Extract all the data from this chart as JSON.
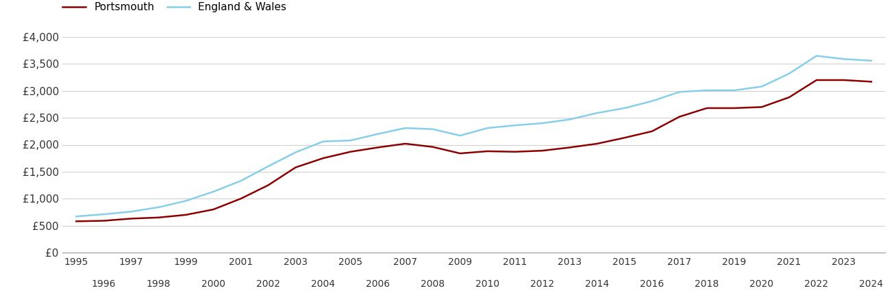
{
  "portsmouth": {
    "years": [
      1995,
      1996,
      1997,
      1998,
      1999,
      2000,
      2001,
      2002,
      2003,
      2004,
      2005,
      2006,
      2007,
      2008,
      2009,
      2010,
      2011,
      2012,
      2013,
      2014,
      2015,
      2016,
      2017,
      2018,
      2019,
      2020,
      2021,
      2022,
      2023,
      2024
    ],
    "values": [
      580,
      590,
      630,
      650,
      700,
      800,
      1000,
      1250,
      1580,
      1750,
      1870,
      1950,
      2020,
      1960,
      1840,
      1880,
      1870,
      1890,
      1950,
      2020,
      2130,
      2250,
      2520,
      2680,
      2680,
      2700,
      2880,
      3200,
      3200,
      3170
    ]
  },
  "england_wales": {
    "years": [
      1995,
      1996,
      1997,
      1998,
      1999,
      2000,
      2001,
      2002,
      2003,
      2004,
      2005,
      2006,
      2007,
      2008,
      2009,
      2010,
      2011,
      2012,
      2013,
      2014,
      2015,
      2016,
      2017,
      2018,
      2019,
      2020,
      2021,
      2022,
      2023,
      2024
    ],
    "values": [
      670,
      710,
      760,
      840,
      960,
      1130,
      1330,
      1600,
      1860,
      2060,
      2080,
      2200,
      2310,
      2290,
      2170,
      2310,
      2360,
      2400,
      2470,
      2590,
      2680,
      2810,
      2980,
      3010,
      3010,
      3080,
      3320,
      3650,
      3590,
      3560
    ]
  },
  "portsmouth_color": "#8B0000",
  "england_wales_color": "#87CEEB",
  "portsmouth_label": "Portsmouth",
  "england_wales_label": "England & Wales",
  "ylim": [
    0,
    4000
  ],
  "yticks": [
    0,
    500,
    1000,
    1500,
    2000,
    2500,
    3000,
    3500,
    4000
  ],
  "ytick_labels": [
    "£0",
    "£500",
    "£1,000",
    "£1,500",
    "£2,000",
    "£2,500",
    "£3,000",
    "£3,500",
    "£4,000"
  ],
  "xlim_min": 1994.5,
  "xlim_max": 2024.5,
  "line_width": 1.8,
  "background_color": "#ffffff",
  "grid_color": "#d0d0d0"
}
